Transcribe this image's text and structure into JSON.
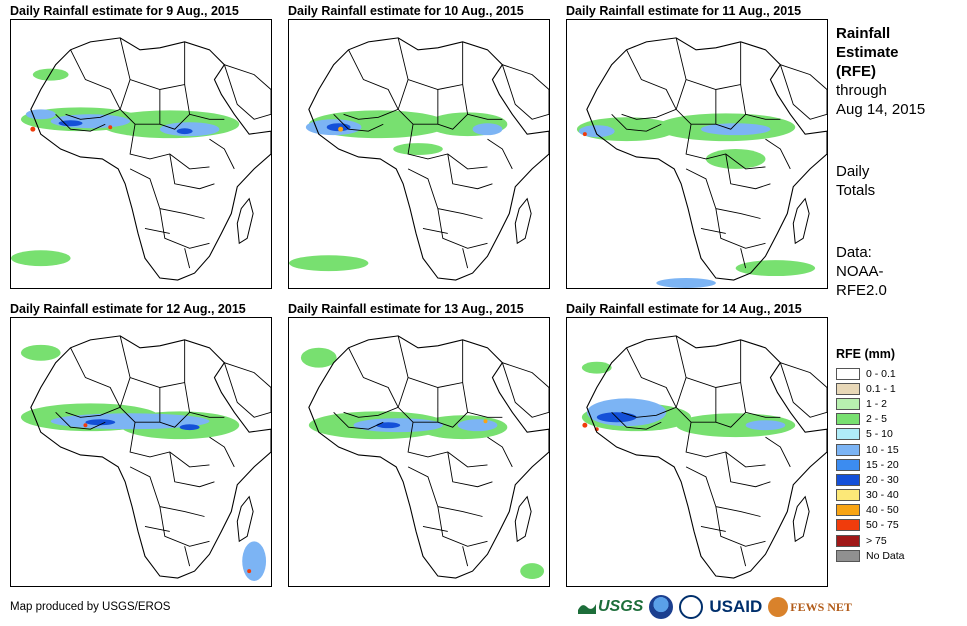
{
  "panels": [
    {
      "title": "Daily Rainfall estimate for 9 Aug., 2015"
    },
    {
      "title": "Daily Rainfall estimate for 10 Aug., 2015"
    },
    {
      "title": "Daily Rainfall estimate for 11 Aug., 2015"
    },
    {
      "title": "Daily Rainfall estimate for 12 Aug., 2015"
    },
    {
      "title": "Daily Rainfall estimate for 13 Aug., 2015"
    },
    {
      "title": "Daily Rainfall estimate for 14 Aug., 2015"
    }
  ],
  "sidebar": {
    "heading_1": "Rainfall",
    "heading_2": "Estimate",
    "heading_3": "(RFE)",
    "through": "through",
    "date": "Aug 14, 2015",
    "daily_1": "Daily",
    "daily_2": "Totals",
    "data_1": "Data:",
    "data_2": "NOAA-",
    "data_3": "RFE2.0"
  },
  "legend": {
    "title": "RFE (mm)",
    "items": [
      {
        "label": "0 - 0.1",
        "color": "#ffffff"
      },
      {
        "label": "0.1 - 1",
        "color": "#e8d8b8"
      },
      {
        "label": "1 - 2",
        "color": "#b8f0b0"
      },
      {
        "label": "2 - 5",
        "color": "#78e070"
      },
      {
        "label": "5 - 10",
        "color": "#b0ecf8"
      },
      {
        "label": "10 - 15",
        "color": "#7cb4f4"
      },
      {
        "label": "15 - 20",
        "color": "#3c8cf0"
      },
      {
        "label": "20 - 30",
        "color": "#1450d8"
      },
      {
        "label": "30 - 40",
        "color": "#fce878"
      },
      {
        "label": "40 - 50",
        "color": "#f8a414"
      },
      {
        "label": "50 - 75",
        "color": "#f03c0c"
      },
      {
        "label": "> 75",
        "color": "#a01818"
      },
      {
        "label": "No Data",
        "color": "#909090"
      }
    ]
  },
  "credit": "Map produced by USGS/EROS",
  "logos": {
    "usgs": "USGS",
    "usaid": "USAID",
    "fews": "FEWS NET"
  }
}
